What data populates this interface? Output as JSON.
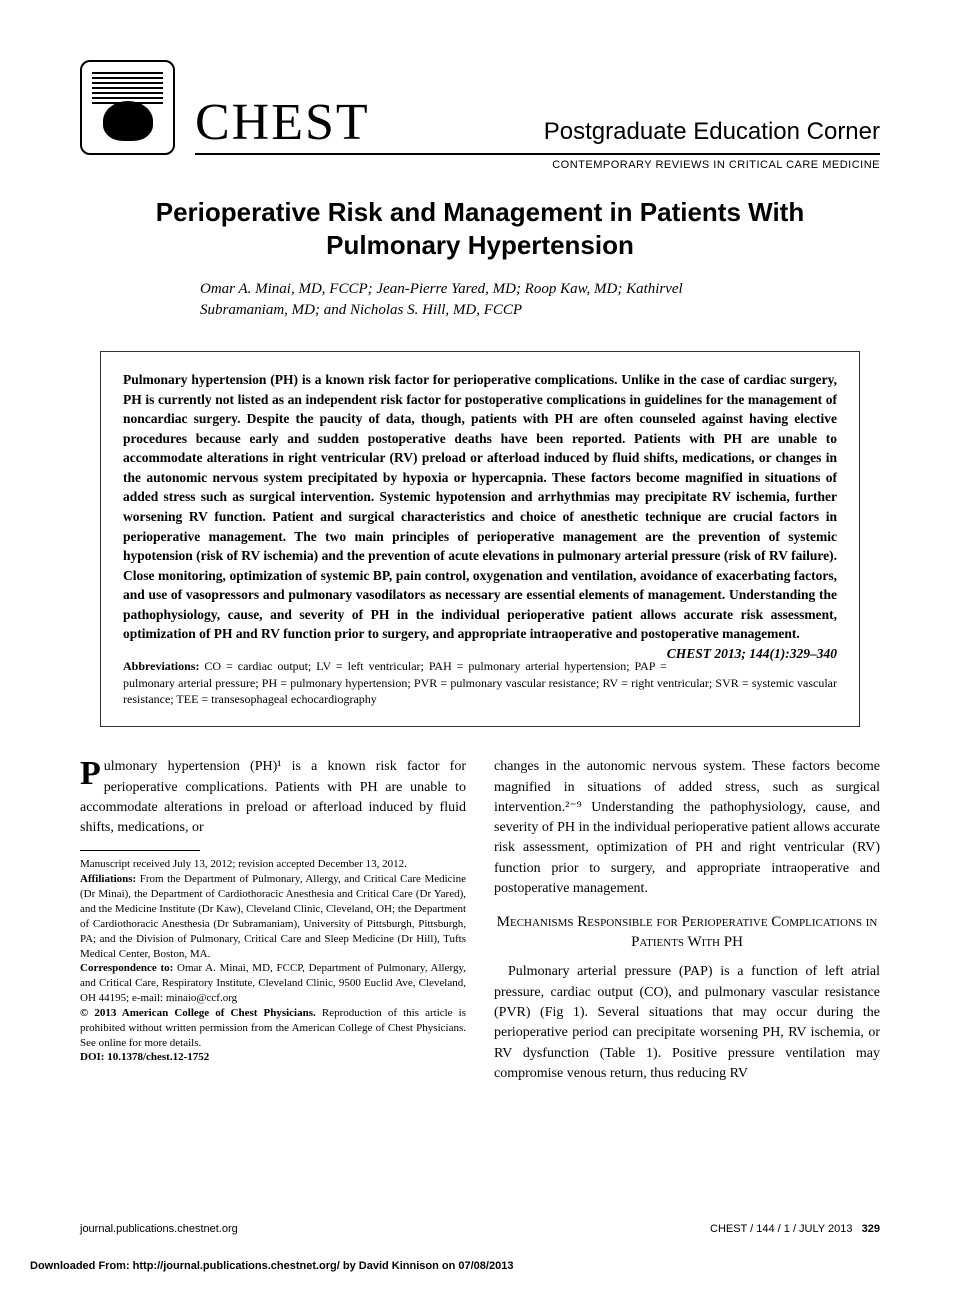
{
  "header": {
    "journal": "CHEST",
    "corner": "Postgraduate Education Corner",
    "subtitle": "CONTEMPORARY REVIEWS IN CRITICAL CARE MEDICINE"
  },
  "article": {
    "title": "Perioperative Risk and Management in Patients With Pulmonary Hypertension",
    "authors": "Omar A. Minai, MD, FCCP; Jean-Pierre Yared, MD; Roop Kaw, MD; Kathirvel Subramaniam, MD; and Nicholas S. Hill, MD, FCCP"
  },
  "abstract": {
    "text": "Pulmonary hypertension (PH) is a known risk factor for perioperative complications. Unlike in the case of cardiac surgery, PH is currently not listed as an independent risk factor for postoperative complications in guidelines for the management of noncardiac surgery. Despite the paucity of data, though, patients with PH are often counseled against having elective procedures because early and sudden postoperative deaths have been reported. Patients with PH are unable to accommodate alterations in right ventricular (RV) preload or afterload induced by fluid shifts, medications, or changes in the autonomic nervous system precipitated by hypoxia or hypercapnia. These factors become magnified in situations of added stress such as surgical intervention. Systemic hypotension and arrhythmias may precipitate RV ischemia, further worsening RV function. Patient and surgical characteristics and choice of anesthetic technique are crucial factors in perioperative management. The two main principles of perioperative management are the prevention of systemic hypotension (risk of RV ischemia) and the prevention of acute elevations in pulmonary arterial pressure (risk of RV failure). Close monitoring, optimization of systemic BP, pain control, oxygenation and ventilation, avoidance of exacerbating factors, and use of vasopressors and pulmonary vasodilators as necessary are essential elements of management. Understanding the pathophysiology, cause, and severity of PH in the individual perioperative patient allows accurate risk assessment, optimization of PH and RV function prior to surgery, and appropriate intraoperative and postoperative management.",
    "citation": "CHEST 2013; 144(1):329–340",
    "abbrev_label": "Abbreviations:",
    "abbreviations": " CO = cardiac output; LV = left ventricular; PAH = pulmonary arterial hypertension; PAP = pulmonary arterial pressure; PH = pulmonary hypertension; PVR = pulmonary vascular resistance; RV = right ventricular; SVR = systemic vascular resistance; TEE = transesophageal echocardiography"
  },
  "body": {
    "col1_intro": "ulmonary hypertension (PH)¹ is a known risk factor for perioperative complications. Patients with PH are unable to accommodate alterations in preload or afterload induced by fluid shifts, medications, or",
    "col2_p1": "changes in the autonomic nervous system. These factors become magnified in situations of added stress, such as surgical intervention.²⁻⁹ Understanding the pathophysiology, cause, and severity of PH in the individual perioperative patient allows accurate risk assessment, optimization of PH and right ventricular (RV) function prior to surgery, and appropriate intraoperative and postoperative management.",
    "section_heading": "Mechanisms Responsible for Perioperative Complications in Patients With PH",
    "col2_p2": "Pulmonary arterial pressure (PAP) is a function of left atrial pressure, cardiac output (CO), and pulmonary vascular resistance (PVR) (Fig 1). Several situations that may occur during the perioperative period can precipitate worsening PH, RV ischemia, or RV dysfunction (Table 1). Positive pressure ventilation may compromise venous return, thus reducing RV"
  },
  "footnotes": {
    "manuscript": "Manuscript received July 13, 2012; revision accepted December 13, 2012.",
    "affil_label": "Affiliations:",
    "affiliations": " From the Department of Pulmonary, Allergy, and Critical Care Medicine (Dr Minai), the Department of Cardiothoracic Anesthesia and Critical Care (Dr Yared), and the Medicine Institute (Dr Kaw), Cleveland Clinic, Cleveland, OH; the Department of Cardiothoracic Anesthesia (Dr Subramaniam), University of Pittsburgh, Pittsburgh, PA; and the Division of Pulmonary, Critical Care and Sleep Medicine (Dr Hill), Tufts Medical Center, Boston, MA.",
    "corr_label": "Correspondence to:",
    "correspondence": " Omar A. Minai, MD, FCCP, Department of Pulmonary, Allergy, and Critical Care, Respiratory Institute, Cleveland Clinic, 9500 Euclid Ave, Cleveland, OH 44195; e-mail: minaio@ccf.org",
    "copy_label": "© 2013 American College of Chest Physicians.",
    "copyright": " Reproduction of this article is prohibited without written permission from the American College of Chest Physicians. See online for more details.",
    "doi_label": "DOI: 10.1378/chest.12-1752"
  },
  "footer": {
    "left": "journal.publications.chestnet.org",
    "right_issue": "CHEST / 144 / 1 / JULY 2013",
    "right_page": "329"
  },
  "download": "Downloaded From: http://journal.publications.chestnet.org/ by David Kinnison on 07/08/2013"
}
